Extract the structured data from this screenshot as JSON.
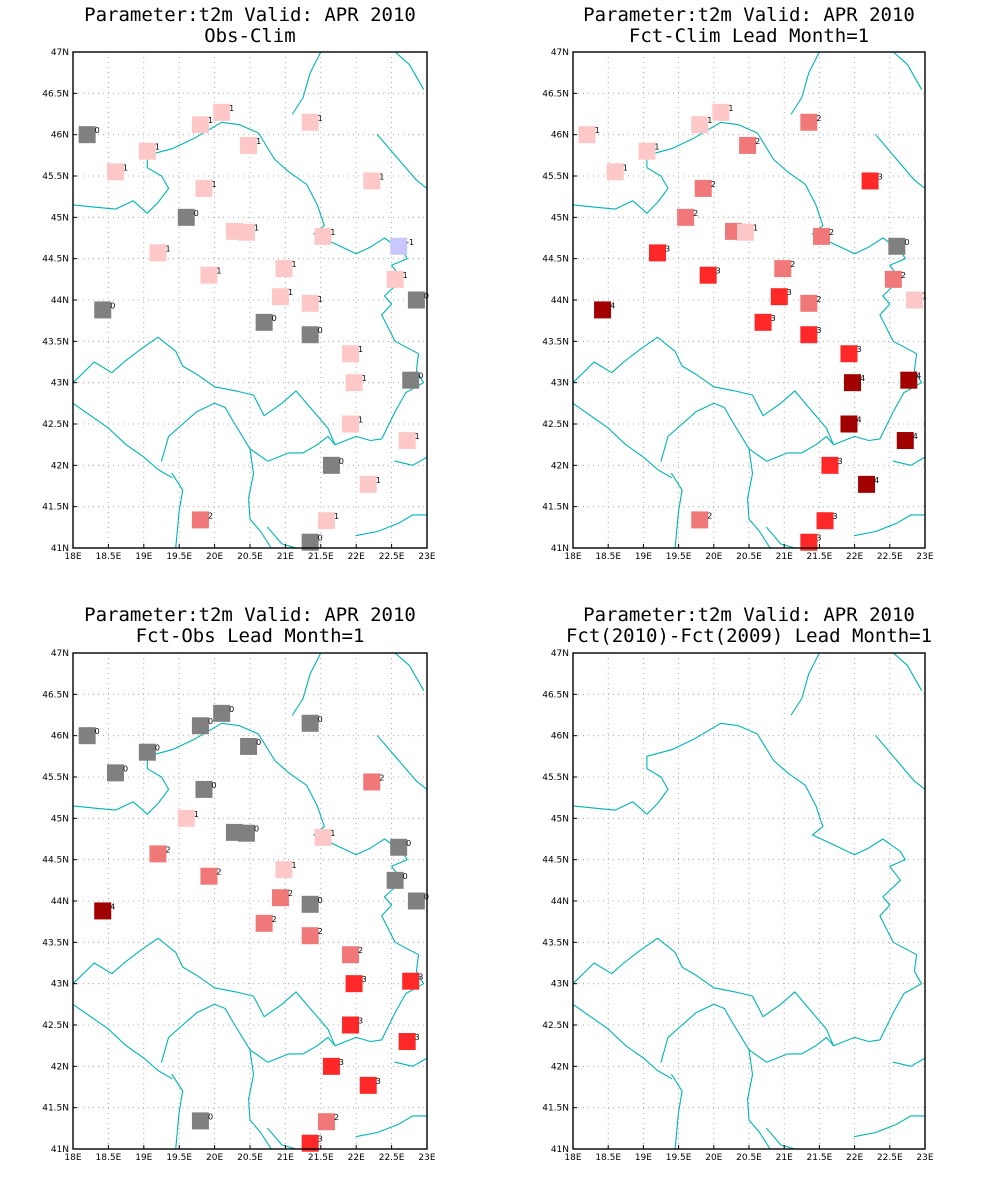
{
  "colors": {
    "border": "#00b4b4",
    "levels": {
      "-1": "#c8c8ff",
      "0": "#808080",
      "1": "#ffc8c8",
      "2": "#f07878",
      "3": "#ff2828",
      "4": "#a00000"
    }
  },
  "axes": {
    "xlim": [
      18,
      23
    ],
    "ylim": [
      41,
      47
    ],
    "x_ticks": [
      18,
      18.5,
      19,
      19.5,
      20,
      20.5,
      21,
      21.5,
      22,
      22.5,
      23
    ],
    "x_tick_labels": [
      "18E",
      "18.5E",
      "19E",
      "19.5E",
      "20E",
      "20.5E",
      "21E",
      "21.5E",
      "22E",
      "22.5E",
      "23E"
    ],
    "y_ticks": [
      41,
      41.5,
      42,
      42.5,
      43,
      43.5,
      44,
      44.5,
      45,
      45.5,
      46,
      46.5,
      47
    ],
    "y_tick_labels": [
      "41N",
      "41.5N",
      "42N",
      "42.5N",
      "43N",
      "43.5N",
      "44N",
      "44.5N",
      "45N",
      "45.5N",
      "46N",
      "46.5N",
      "47N"
    ],
    "grid": true
  },
  "chart_data": [
    {
      "type": "scatter",
      "title": "Parameter:t2m Valid: APR 2010",
      "subtitle": "Obs-Clim",
      "points": [
        {
          "x": 18.2,
          "y": 46.0,
          "v": 0
        },
        {
          "x": 18.6,
          "y": 45.55,
          "v": 1
        },
        {
          "x": 19.05,
          "y": 45.8,
          "v": 1
        },
        {
          "x": 19.8,
          "y": 46.12,
          "v": 1
        },
        {
          "x": 20.1,
          "y": 46.27,
          "v": 1
        },
        {
          "x": 20.48,
          "y": 45.87,
          "v": 1
        },
        {
          "x": 21.35,
          "y": 46.15,
          "v": 1
        },
        {
          "x": 19.85,
          "y": 45.35,
          "v": 1
        },
        {
          "x": 22.22,
          "y": 45.44,
          "v": 1
        },
        {
          "x": 19.6,
          "y": 45.0,
          "v": 0
        },
        {
          "x": 20.28,
          "y": 44.83,
          "v": 1
        },
        {
          "x": 20.45,
          "y": 44.82,
          "v": 1
        },
        {
          "x": 21.53,
          "y": 44.77,
          "v": 1
        },
        {
          "x": 22.6,
          "y": 44.65,
          "v": -1
        },
        {
          "x": 19.2,
          "y": 44.57,
          "v": 1
        },
        {
          "x": 19.92,
          "y": 44.3,
          "v": 1
        },
        {
          "x": 20.98,
          "y": 44.38,
          "v": 1
        },
        {
          "x": 22.55,
          "y": 44.25,
          "v": 1
        },
        {
          "x": 18.42,
          "y": 43.88,
          "v": 0
        },
        {
          "x": 20.93,
          "y": 44.04,
          "v": 1
        },
        {
          "x": 21.35,
          "y": 43.96,
          "v": 1
        },
        {
          "x": 22.85,
          "y": 44.0,
          "v": 0
        },
        {
          "x": 20.7,
          "y": 43.73,
          "v": 0
        },
        {
          "x": 21.35,
          "y": 43.58,
          "v": 0
        },
        {
          "x": 21.92,
          "y": 43.35,
          "v": 1
        },
        {
          "x": 21.97,
          "y": 43.0,
          "v": 1
        },
        {
          "x": 22.77,
          "y": 43.03,
          "v": 0
        },
        {
          "x": 21.92,
          "y": 42.5,
          "v": 1
        },
        {
          "x": 22.72,
          "y": 42.3,
          "v": 1
        },
        {
          "x": 21.65,
          "y": 42.0,
          "v": 0
        },
        {
          "x": 22.17,
          "y": 41.77,
          "v": 1
        },
        {
          "x": 19.8,
          "y": 41.34,
          "v": 2
        },
        {
          "x": 21.58,
          "y": 41.33,
          "v": 1
        },
        {
          "x": 21.35,
          "y": 41.07,
          "v": 0
        }
      ]
    },
    {
      "type": "scatter",
      "title": "Parameter:t2m Valid: APR 2010",
      "subtitle": "Fct-Clim Lead Month=1",
      "points": [
        {
          "x": 18.2,
          "y": 46.0,
          "v": 1
        },
        {
          "x": 18.6,
          "y": 45.55,
          "v": 1
        },
        {
          "x": 19.05,
          "y": 45.8,
          "v": 1
        },
        {
          "x": 19.8,
          "y": 46.12,
          "v": 1
        },
        {
          "x": 20.1,
          "y": 46.27,
          "v": 1
        },
        {
          "x": 20.48,
          "y": 45.87,
          "v": 2
        },
        {
          "x": 21.35,
          "y": 46.15,
          "v": 2
        },
        {
          "x": 19.85,
          "y": 45.35,
          "v": 2
        },
        {
          "x": 22.22,
          "y": 45.44,
          "v": 3
        },
        {
          "x": 19.6,
          "y": 45.0,
          "v": 2
        },
        {
          "x": 20.28,
          "y": 44.83,
          "v": 2
        },
        {
          "x": 20.45,
          "y": 44.82,
          "v": 1
        },
        {
          "x": 21.53,
          "y": 44.77,
          "v": 2
        },
        {
          "x": 22.6,
          "y": 44.65,
          "v": 0
        },
        {
          "x": 19.2,
          "y": 44.57,
          "v": 3
        },
        {
          "x": 19.92,
          "y": 44.3,
          "v": 3
        },
        {
          "x": 20.98,
          "y": 44.38,
          "v": 2
        },
        {
          "x": 22.55,
          "y": 44.25,
          "v": 2
        },
        {
          "x": 18.42,
          "y": 43.88,
          "v": 4
        },
        {
          "x": 20.93,
          "y": 44.04,
          "v": 3
        },
        {
          "x": 21.35,
          "y": 43.96,
          "v": 2
        },
        {
          "x": 22.85,
          "y": 44.0,
          "v": 1
        },
        {
          "x": 20.7,
          "y": 43.73,
          "v": 3
        },
        {
          "x": 21.35,
          "y": 43.58,
          "v": 3
        },
        {
          "x": 21.92,
          "y": 43.35,
          "v": 3
        },
        {
          "x": 21.97,
          "y": 43.0,
          "v": 4
        },
        {
          "x": 22.77,
          "y": 43.03,
          "v": 4
        },
        {
          "x": 21.92,
          "y": 42.5,
          "v": 4
        },
        {
          "x": 22.72,
          "y": 42.3,
          "v": 4
        },
        {
          "x": 21.65,
          "y": 42.0,
          "v": 3
        },
        {
          "x": 22.17,
          "y": 41.77,
          "v": 4
        },
        {
          "x": 19.8,
          "y": 41.34,
          "v": 2
        },
        {
          "x": 21.58,
          "y": 41.33,
          "v": 3
        },
        {
          "x": 21.35,
          "y": 41.07,
          "v": 3
        }
      ]
    },
    {
      "type": "scatter",
      "title": "Parameter:t2m Valid: APR 2010",
      "subtitle": "Fct-Obs Lead Month=1",
      "points": [
        {
          "x": 18.2,
          "y": 46.0,
          "v": 0
        },
        {
          "x": 18.6,
          "y": 45.55,
          "v": 0
        },
        {
          "x": 19.05,
          "y": 45.8,
          "v": 0
        },
        {
          "x": 19.8,
          "y": 46.12,
          "v": 0
        },
        {
          "x": 20.1,
          "y": 46.27,
          "v": 0
        },
        {
          "x": 20.48,
          "y": 45.87,
          "v": 0
        },
        {
          "x": 21.35,
          "y": 46.15,
          "v": 0
        },
        {
          "x": 19.85,
          "y": 45.35,
          "v": 0
        },
        {
          "x": 22.22,
          "y": 45.44,
          "v": 2
        },
        {
          "x": 19.6,
          "y": 45.0,
          "v": 1
        },
        {
          "x": 20.28,
          "y": 44.83,
          "v": 0
        },
        {
          "x": 20.45,
          "y": 44.82,
          "v": 0
        },
        {
          "x": 21.53,
          "y": 44.77,
          "v": 1
        },
        {
          "x": 22.6,
          "y": 44.65,
          "v": 0
        },
        {
          "x": 19.2,
          "y": 44.57,
          "v": 2
        },
        {
          "x": 19.92,
          "y": 44.3,
          "v": 2
        },
        {
          "x": 20.98,
          "y": 44.38,
          "v": 1
        },
        {
          "x": 22.55,
          "y": 44.25,
          "v": 0
        },
        {
          "x": 18.42,
          "y": 43.88,
          "v": 4
        },
        {
          "x": 20.93,
          "y": 44.04,
          "v": 2
        },
        {
          "x": 21.35,
          "y": 43.96,
          "v": 0
        },
        {
          "x": 22.85,
          "y": 44.0,
          "v": 0
        },
        {
          "x": 20.7,
          "y": 43.73,
          "v": 2
        },
        {
          "x": 21.35,
          "y": 43.58,
          "v": 2
        },
        {
          "x": 21.92,
          "y": 43.35,
          "v": 2
        },
        {
          "x": 21.97,
          "y": 43.0,
          "v": 3
        },
        {
          "x": 22.77,
          "y": 43.03,
          "v": 3
        },
        {
          "x": 21.92,
          "y": 42.5,
          "v": 3
        },
        {
          "x": 22.72,
          "y": 42.3,
          "v": 3
        },
        {
          "x": 21.65,
          "y": 42.0,
          "v": 3
        },
        {
          "x": 22.17,
          "y": 41.77,
          "v": 3
        },
        {
          "x": 19.8,
          "y": 41.34,
          "v": 0
        },
        {
          "x": 21.58,
          "y": 41.33,
          "v": 2
        },
        {
          "x": 21.35,
          "y": 41.07,
          "v": 3
        }
      ]
    },
    {
      "type": "scatter",
      "title": "Parameter:t2m Valid: APR 2010",
      "subtitle": "Fct(2010)-Fct(2009) Lead Month=1",
      "points": []
    }
  ],
  "map_borders": [
    [
      [
        18.0,
        45.15
      ],
      [
        18.35,
        45.12
      ],
      [
        18.6,
        45.1
      ],
      [
        18.85,
        45.2
      ],
      [
        19.05,
        45.05
      ],
      [
        19.2,
        45.18
      ],
      [
        19.35,
        45.35
      ],
      [
        19.25,
        45.5
      ],
      [
        19.05,
        45.6
      ],
      [
        19.05,
        45.75
      ],
      [
        19.4,
        45.83
      ],
      [
        19.7,
        45.95
      ],
      [
        20.1,
        46.15
      ],
      [
        20.35,
        46.12
      ],
      [
        20.62,
        46.02
      ],
      [
        20.85,
        45.7
      ],
      [
        21.05,
        45.55
      ],
      [
        21.3,
        45.4
      ],
      [
        21.45,
        45.15
      ],
      [
        21.55,
        44.9
      ],
      [
        21.4,
        44.8
      ],
      [
        21.7,
        44.68
      ],
      [
        22.0,
        44.56
      ],
      [
        22.2,
        44.64
      ],
      [
        22.4,
        44.75
      ],
      [
        22.65,
        44.6
      ],
      [
        22.72,
        44.5
      ],
      [
        22.5,
        44.42
      ],
      [
        22.65,
        44.25
      ],
      [
        22.4,
        44.05
      ],
      [
        22.5,
        43.95
      ],
      [
        22.36,
        43.82
      ],
      [
        22.55,
        43.5
      ],
      [
        22.88,
        43.35
      ],
      [
        22.85,
        43.15
      ],
      [
        22.95,
        43.0
      ],
      [
        22.7,
        42.88
      ],
      [
        22.55,
        42.65
      ],
      [
        22.36,
        42.32
      ],
      [
        22.2,
        42.3
      ],
      [
        22.0,
        42.35
      ],
      [
        21.7,
        42.25
      ],
      [
        21.6,
        42.35
      ],
      [
        21.45,
        42.25
      ],
      [
        21.25,
        42.15
      ],
      [
        21.05,
        42.15
      ]
    ],
    [
      [
        21.5,
        47.0
      ],
      [
        21.35,
        46.75
      ],
      [
        21.25,
        46.45
      ],
      [
        21.1,
        46.25
      ]
    ],
    [
      [
        22.55,
        47.0
      ],
      [
        22.75,
        46.85
      ],
      [
        22.85,
        46.7
      ],
      [
        22.95,
        46.55
      ]
    ],
    [
      [
        22.3,
        46.0
      ],
      [
        22.6,
        45.7
      ],
      [
        22.85,
        45.45
      ],
      [
        23.0,
        45.35
      ]
    ],
    [
      [
        18.0,
        43.0
      ],
      [
        18.3,
        43.25
      ],
      [
        18.55,
        43.12
      ],
      [
        18.72,
        43.25
      ],
      [
        18.95,
        43.4
      ],
      [
        19.2,
        43.55
      ],
      [
        19.45,
        43.38
      ],
      [
        19.55,
        43.2
      ],
      [
        19.75,
        43.1
      ],
      [
        20.0,
        42.95
      ],
      [
        20.3,
        42.9
      ],
      [
        20.55,
        42.85
      ],
      [
        20.7,
        42.6
      ],
      [
        20.95,
        42.75
      ],
      [
        21.15,
        42.9
      ],
      [
        21.35,
        42.7
      ],
      [
        21.6,
        42.45
      ],
      [
        21.7,
        42.25
      ]
    ],
    [
      [
        18.0,
        42.75
      ],
      [
        18.25,
        42.6
      ],
      [
        18.5,
        42.45
      ],
      [
        18.75,
        42.25
      ],
      [
        19.0,
        42.1
      ],
      [
        19.2,
        41.95
      ],
      [
        19.4,
        41.85
      ]
    ],
    [
      [
        19.25,
        42.05
      ],
      [
        19.35,
        42.35
      ],
      [
        19.55,
        42.5
      ],
      [
        19.75,
        42.65
      ],
      [
        20.0,
        42.75
      ],
      [
        20.15,
        42.7
      ],
      [
        20.25,
        42.55
      ]
    ],
    [
      [
        19.4,
        41.9
      ],
      [
        19.55,
        41.7
      ],
      [
        19.5,
        41.45
      ],
      [
        19.45,
        41.0
      ]
    ],
    [
      [
        20.25,
        42.55
      ],
      [
        20.5,
        42.2
      ],
      [
        20.55,
        41.9
      ],
      [
        20.48,
        41.6
      ],
      [
        20.5,
        41.35
      ],
      [
        20.65,
        41.2
      ],
      [
        20.8,
        41.0
      ]
    ],
    [
      [
        20.5,
        42.2
      ],
      [
        20.75,
        42.05
      ],
      [
        21.05,
        42.15
      ]
    ],
    [
      [
        20.75,
        41.25
      ],
      [
        20.95,
        41.05
      ],
      [
        21.15,
        41.0
      ]
    ],
    [
      [
        22.0,
        41.15
      ],
      [
        22.3,
        41.2
      ],
      [
        22.6,
        41.3
      ],
      [
        22.8,
        41.4
      ],
      [
        23.0,
        41.4
      ]
    ],
    [
      [
        22.55,
        42.05
      ],
      [
        22.8,
        42.0
      ],
      [
        23.0,
        42.1
      ]
    ]
  ]
}
